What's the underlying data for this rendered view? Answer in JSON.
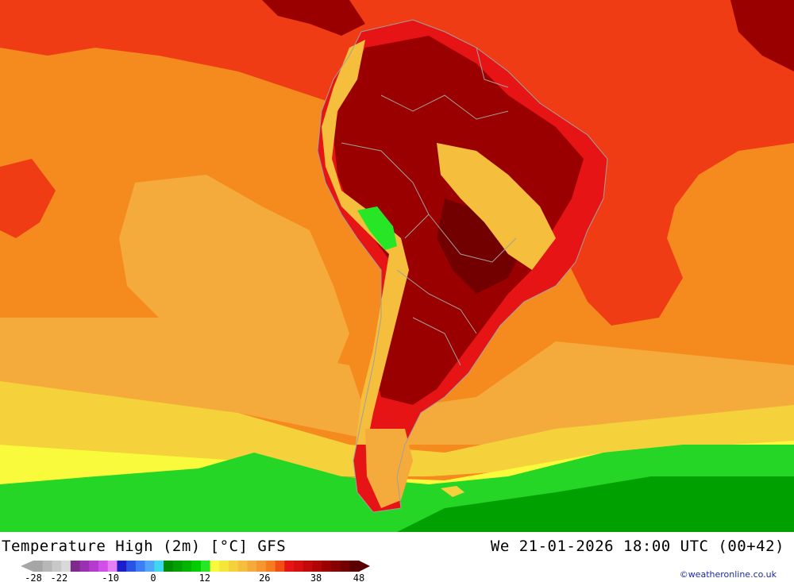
{
  "title": "Temperature High (2m) [°C] GFS",
  "datetime": "We 21-01-2026 18:00 UTC (00+42)",
  "credit": "©weatheronline.co.uk",
  "legend": {
    "colors": [
      "#a6a6a6",
      "#b7b7b7",
      "#c8c8c8",
      "#d9d9d9",
      "#7d2a8c",
      "#9b30b0",
      "#b43bcd",
      "#d04fe6",
      "#e77ff5",
      "#1c1cc8",
      "#2a52e6",
      "#3c7ff5",
      "#4fa6fa",
      "#3fd6f0",
      "#008c00",
      "#00a000",
      "#00b400",
      "#00cd00",
      "#26e626",
      "#fafa3c",
      "#f5e63c",
      "#f5d23c",
      "#f5be3c",
      "#f5aa3c",
      "#f59632",
      "#f57d1e",
      "#f05014",
      "#e61414",
      "#d70f0f",
      "#c30a0a",
      "#af0505",
      "#9b0000",
      "#870000",
      "#730000",
      "#5a0000"
    ],
    "ticks": [
      {
        "label": "-28",
        "value": -28
      },
      {
        "label": "-22",
        "value": -22
      },
      {
        "label": "-10",
        "value": -10
      },
      {
        "label": "0",
        "value": 0
      },
      {
        "label": "12",
        "value": 12
      },
      {
        "label": "26",
        "value": 26
      },
      {
        "label": "38",
        "value": 38
      },
      {
        "label": "48",
        "value": 48
      }
    ],
    "min": -28,
    "max": 48
  },
  "map_colors": {
    "ocean_warm": "#f03c14",
    "ocean_orange": "#f58a1e",
    "ocean_light": "#f5aa3c",
    "ocean_yellow": "#f5d23c",
    "ocean_lime": "#fafa3c",
    "ocean_green": "#26d626",
    "ocean_darkgreen": "#00a000",
    "land_hot": "#9b0000",
    "land_hotter": "#730000",
    "land_warm": "#c30a0a",
    "land_mid": "#e61414",
    "andes_cool": "#f5be3c",
    "andes_green": "#26e626",
    "border": "#a0a0a0"
  }
}
